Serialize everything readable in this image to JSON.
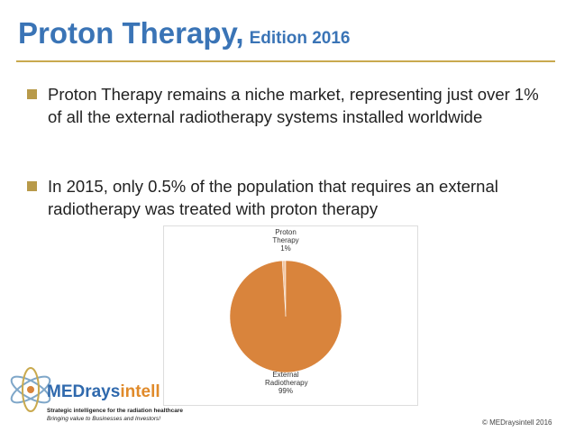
{
  "header": {
    "title": "Proton Therapy,",
    "edition": "Edition 2016"
  },
  "bullets": [
    "Proton Therapy remains a niche market, representing just over 1% of all the external radiotherapy systems installed worldwide",
    "In 2015, only 0.5% of the population that requires an external radiotherapy was treated with proton therapy"
  ],
  "chart_data": {
    "type": "pie",
    "categories": [
      "Proton Therapy",
      "External Radiotherapy"
    ],
    "values": [
      1,
      99
    ],
    "value_labels": [
      "1%",
      "99%"
    ],
    "colors": [
      "#f3c6a2",
      "#d9843c"
    ]
  },
  "logo": {
    "part1": "MEDrays",
    "part2": "intell",
    "tagline": "Strategic intelligence for the radiation healthcare",
    "subtagline": "Bringing value to Businesses and Investors!"
  },
  "footer": {
    "copyright": "© MEDraysintell 2016"
  }
}
